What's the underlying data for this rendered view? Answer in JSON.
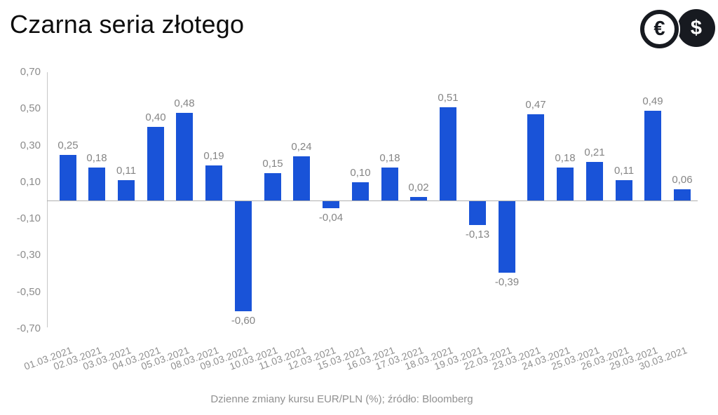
{
  "header": {
    "title": "Czarna seria złotego",
    "euro_symbol": "€",
    "dollar_symbol": "$"
  },
  "footer": {
    "caption": "Dzienne zmiany kursu EUR/PLN (%); źródło: Bloomberg"
  },
  "chart_data": {
    "type": "bar",
    "title": "Czarna seria złotego",
    "xlabel": "",
    "ylabel": "",
    "categories": [
      "01.03.2021",
      "02.03.2021",
      "03.03.2021",
      "04.03.2021",
      "05.03.2021",
      "08.03.2021",
      "09.03.2021",
      "10.03.2021",
      "11.03.2021",
      "12.03.2021",
      "15.03.2021",
      "16.03.2021",
      "17.03.2021",
      "18.03.2021",
      "19.03.2021",
      "22.03.2021",
      "23.03.2021",
      "24.03.2021",
      "25.03.2021",
      "26.03.2021",
      "29.03.2021",
      "30.03.2021"
    ],
    "values": [
      0.25,
      0.18,
      0.11,
      0.4,
      0.48,
      0.19,
      -0.6,
      0.15,
      0.24,
      -0.04,
      0.1,
      0.18,
      0.02,
      0.51,
      -0.13,
      -0.39,
      0.47,
      0.18,
      0.21,
      0.11,
      0.49,
      0.06
    ],
    "value_labels": [
      "0,25",
      "0,18",
      "0,11",
      "0,40",
      "0,48",
      "0,19",
      "-0,60",
      "0,15",
      "0,24",
      "-0,04",
      "0,10",
      "0,18",
      "0,02",
      "0,51",
      "-0,13",
      "-0,39",
      "0,47",
      "0,18",
      "0,21",
      "0,11",
      "0,49",
      "0,06"
    ],
    "y_ticks": [
      {
        "value": 0.7,
        "label": "0,70"
      },
      {
        "value": 0.5,
        "label": "0,50"
      },
      {
        "value": 0.3,
        "label": "0,30"
      },
      {
        "value": 0.1,
        "label": "0,10"
      },
      {
        "value": -0.1,
        "label": "-0,10"
      },
      {
        "value": -0.3,
        "label": "-0,30"
      },
      {
        "value": -0.5,
        "label": "-0,50"
      },
      {
        "value": -0.7,
        "label": "-0,70"
      }
    ],
    "ylim": [
      -0.7,
      0.7
    ],
    "grid": false,
    "legend": null,
    "bar_color": "#1953d8",
    "caption": "Dzienne zmiany kursu EUR/PLN (%); źródło: Bloomberg"
  },
  "colors": {
    "bar": "#1953d8",
    "title_text": "#0d0d0d",
    "axis_tick_text": "#8c8c8c",
    "value_label_text": "#858585",
    "date_label_text": "#8f8f8f",
    "caption_text": "#909090",
    "axis_line": "#c7c7c7",
    "zero_line": "#b0b0b0",
    "coin_icon": "#171a20",
    "background": "#ffffff"
  }
}
